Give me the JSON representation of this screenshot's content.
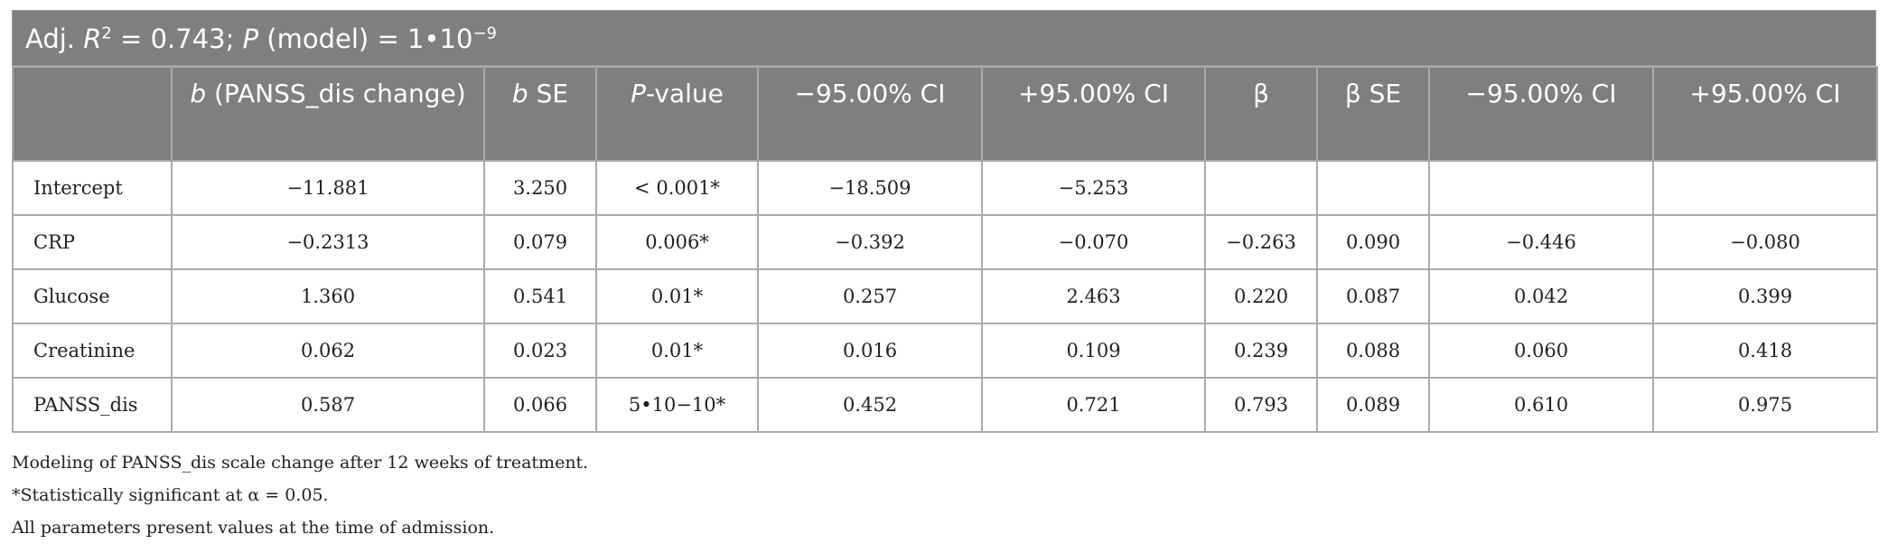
{
  "title": {
    "parts": [
      "Adj. ",
      "R",
      "2",
      " = 0.743; ",
      "P",
      " (model) = 1•10",
      "−9"
    ]
  },
  "table": {
    "header": [
      [
        "b",
        " (PANSS_dis change)"
      ],
      [
        "b",
        " SE"
      ],
      [
        "P",
        "-value"
      ],
      [
        "−95.00% CI"
      ],
      [
        "+95.00% CI"
      ],
      [
        "β"
      ],
      [
        "β SE"
      ],
      [
        "−95.00% CI"
      ],
      [
        "+95.00% CI"
      ]
    ],
    "rows": [
      [
        "Intercept",
        "−11.881",
        "3.250",
        "< 0.001*",
        "−18.509",
        "−5.253"
      ],
      [
        "CRP",
        "−0.2313",
        "0.079",
        "0.006*",
        "−0.392",
        "−0.070",
        "−0.263",
        "0.090",
        "−0.446",
        "−0.080"
      ],
      [
        "Glucose",
        "1.360",
        "0.541",
        "0.01*",
        "0.257",
        "2.463",
        "0.220",
        "0.087",
        "0.042",
        "0.399"
      ],
      [
        "Creatinine",
        "0.062",
        "0.023",
        "0.01*",
        "0.016",
        "0.109",
        "0.239",
        "0.088",
        "0.060",
        "0.418"
      ],
      [
        "PANSS_dis",
        "0.587",
        "0.066",
        "5•10−10*",
        "0.452",
        "0.721",
        "0.793",
        "0.089",
        "0.610",
        "0.975"
      ]
    ]
  },
  "footnotes": [
    "Modeling of PANSS_dis scale change after 12 weeks of treatment.",
    "*Statistically significant at α = 0.05.",
    "All parameters present values at the time of admission."
  ]
}
